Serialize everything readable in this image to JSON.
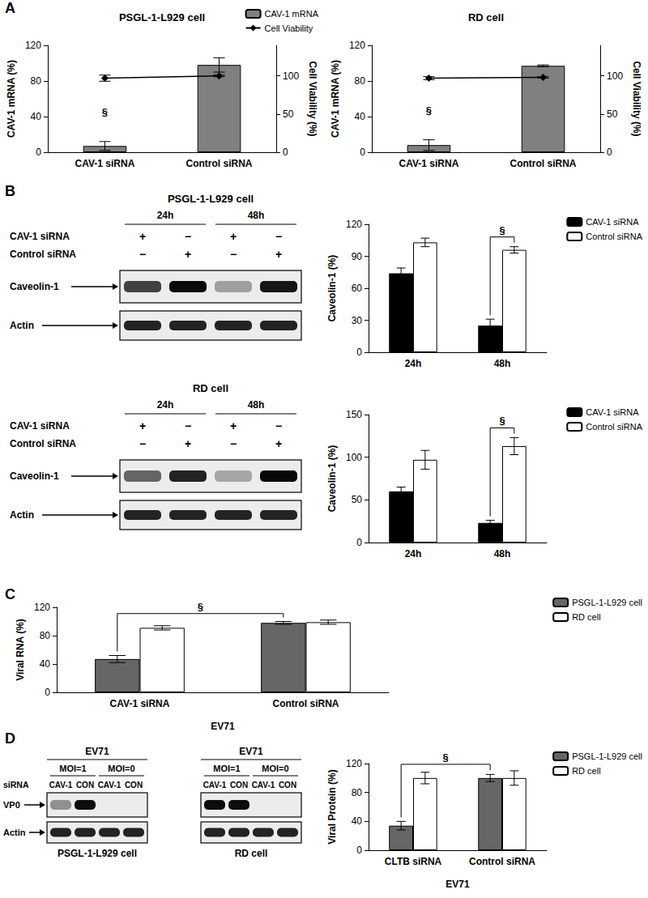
{
  "panel_labels": [
    "A",
    "B",
    "C",
    "D"
  ],
  "chart_data": [
    {
      "type": "bar",
      "title": "PSGL-1-L929 cell",
      "categories": [
        "CAV-1 siRNA",
        "Control siRNA"
      ],
      "series": [
        {
          "name": "CAV-1 mRNA",
          "type": "bar",
          "color": "#808080",
          "values": [
            7,
            98
          ],
          "errors": [
            5,
            8
          ]
        },
        {
          "name": "Cell Viability",
          "type": "line",
          "axis": "y2",
          "color": "#000000",
          "marker": "diamond",
          "values": [
            97,
            100
          ],
          "errors": [
            4,
            1
          ]
        }
      ],
      "y_label": "CAV-1 mRNA (%)",
      "ylim": [
        0,
        120
      ],
      "yticks": [
        0,
        40,
        80,
        120
      ],
      "y2_label": "Cell Viability (%)",
      "y2lim": [
        0,
        140
      ],
      "y2ticks": [
        0,
        50,
        100
      ],
      "annotation": "§",
      "legend": "top"
    },
    {
      "type": "bar",
      "title": "RD cell",
      "categories": [
        "CAV-1 siRNA",
        "Control siRNA"
      ],
      "series": [
        {
          "type": "bar",
          "color": "#808080",
          "values": [
            8,
            97
          ],
          "errors": [
            6,
            1
          ]
        },
        {
          "type": "line",
          "axis": "y2",
          "color": "#000000",
          "marker": "diamond",
          "values": [
            97,
            98
          ],
          "errors": [
            2,
            1
          ]
        }
      ],
      "y_label": "CAV-1 mRNA (%)",
      "ylim": [
        0,
        120
      ],
      "yticks": [
        0,
        40,
        80,
        120
      ],
      "y2_label": "Cell Viability (%)",
      "y2lim": [
        0,
        140
      ],
      "y2ticks": [
        0,
        50,
        100
      ],
      "annotation": "§"
    },
    {
      "type": "bar",
      "categories": [
        "24h",
        "48h"
      ],
      "series": [
        {
          "name": "CAV-1 siRNA",
          "color": "#000000",
          "values": [
            74,
            25
          ],
          "errors": [
            5,
            6
          ]
        },
        {
          "name": "Control siRNA",
          "color": "#ffffff",
          "values": [
            103,
            96
          ],
          "errors": [
            4,
            3
          ]
        }
      ],
      "y_label": "Caveolin-1 (%)",
      "ylim": [
        0,
        120
      ],
      "yticks": [
        0,
        30,
        60,
        90,
        120
      ],
      "annotation": "§",
      "legend": "right"
    },
    {
      "type": "bar",
      "categories": [
        "24h",
        "48h"
      ],
      "series": [
        {
          "name": "CAV-1 siRNA",
          "color": "#000000",
          "values": [
            60,
            23
          ],
          "errors": [
            5,
            3
          ]
        },
        {
          "name": "Control siRNA",
          "color": "#ffffff",
          "values": [
            97,
            113
          ],
          "errors": [
            11,
            10
          ]
        }
      ],
      "y_label": "Caveolin-1 (%)",
      "ylim": [
        0,
        150
      ],
      "yticks": [
        0,
        50,
        100,
        150
      ],
      "annotation": "§",
      "legend": "right"
    },
    {
      "type": "bar",
      "categories": [
        "CAV-1 siRNA",
        "Control siRNA"
      ],
      "x_label": "EV71",
      "series": [
        {
          "name": "PSGL-1-L929 cell",
          "color": "#666666",
          "values": [
            47,
            98
          ],
          "errors": [
            5,
            2
          ]
        },
        {
          "name": "RD cell",
          "color": "#ffffff",
          "values": [
            91,
            99
          ],
          "errors": [
            3,
            3
          ]
        }
      ],
      "y_label": "Viral RNA (%)",
      "ylim": [
        0,
        120
      ],
      "yticks": [
        0,
        40,
        80,
        120
      ],
      "annotation": "§",
      "legend": "right"
    },
    {
      "type": "bar",
      "categories": [
        "CLTB siRNA",
        "Control siRNA"
      ],
      "x_label": "EV71",
      "series": [
        {
          "name": "PSGL-1-L929 cell",
          "color": "#666666",
          "values": [
            34,
            100
          ],
          "errors": [
            6,
            5
          ]
        },
        {
          "name": "RD cell",
          "color": "#ffffff",
          "values": [
            100,
            100
          ],
          "errors": [
            8,
            10
          ]
        }
      ],
      "y_label": "Viral Protein (%)",
      "ylim": [
        0,
        120
      ],
      "yticks": [
        0,
        40,
        80,
        120
      ],
      "annotation": "§",
      "legend": "right"
    }
  ],
  "blots": [
    {
      "title": "PSGL-1-L929 cell",
      "lane_groups": [
        "24h",
        "48h"
      ],
      "rows": [
        {
          "label": "CAV-1 siRNA",
          "marks": [
            "+",
            "−",
            "+",
            "−"
          ]
        },
        {
          "label": "Control siRNA",
          "marks": [
            "−",
            "+",
            "−",
            "+"
          ]
        }
      ],
      "bands": [
        "Caveolin-1",
        "Actin"
      ]
    },
    {
      "title": "RD cell",
      "lane_groups": [
        "24h",
        "48h"
      ],
      "rows": [
        {
          "label": "CAV-1 siRNA",
          "marks": [
            "+",
            "−",
            "+",
            "−"
          ]
        },
        {
          "label": "Control siRNA",
          "marks": [
            "−",
            "+",
            "−",
            "+"
          ]
        }
      ],
      "bands": [
        "Caveolin-1",
        "Actin"
      ]
    },
    {
      "title": "PSGL-1-L929 cell",
      "header": "EV71",
      "lane_groups": [
        "MOI=1",
        "MOI=0"
      ],
      "row_label": "siRNA",
      "lanes": [
        "CAV-1",
        "CON",
        "CAV-1",
        "CON"
      ],
      "bands": [
        "VP0",
        "Actin"
      ]
    },
    {
      "title": "RD cell",
      "header": "EV71",
      "lane_groups": [
        "MOI=1",
        "MOI=0"
      ],
      "lanes": [
        "CAV-1",
        "CON",
        "CAV-1",
        "CON"
      ]
    }
  ]
}
